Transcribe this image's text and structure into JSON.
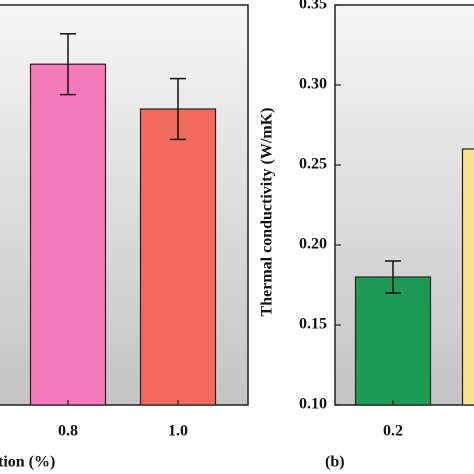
{
  "chart_data": [
    {
      "type": "bar",
      "xlabel": "tion (%)",
      "categories": [
        "0.8",
        "1.0"
      ],
      "values": [
        0.313,
        0.285
      ],
      "errors": [
        0.019,
        0.019
      ],
      "colors": [
        "#f57ab9",
        "#f26a5c"
      ],
      "ylim": [
        0.1,
        0.35
      ]
    },
    {
      "type": "bar",
      "ylabel": "Thermal conductivity (W/mK)",
      "label": "(b)",
      "categories": [
        "0.2",
        null
      ],
      "values": [
        0.18,
        0.26
      ],
      "errors": [
        0.01,
        null
      ],
      "colors": [
        "#1e9b57",
        "#f7e390"
      ],
      "ylim": [
        0.1,
        0.35
      ],
      "yticks": [
        {
          "value": 0.1,
          "label": "0.10"
        },
        0.15,
        {
          "value": 0.2,
          "label": "0.20"
        },
        0.25,
        {
          "value": 0.3,
          "label": "0.30"
        },
        0.35
      ]
    }
  ]
}
